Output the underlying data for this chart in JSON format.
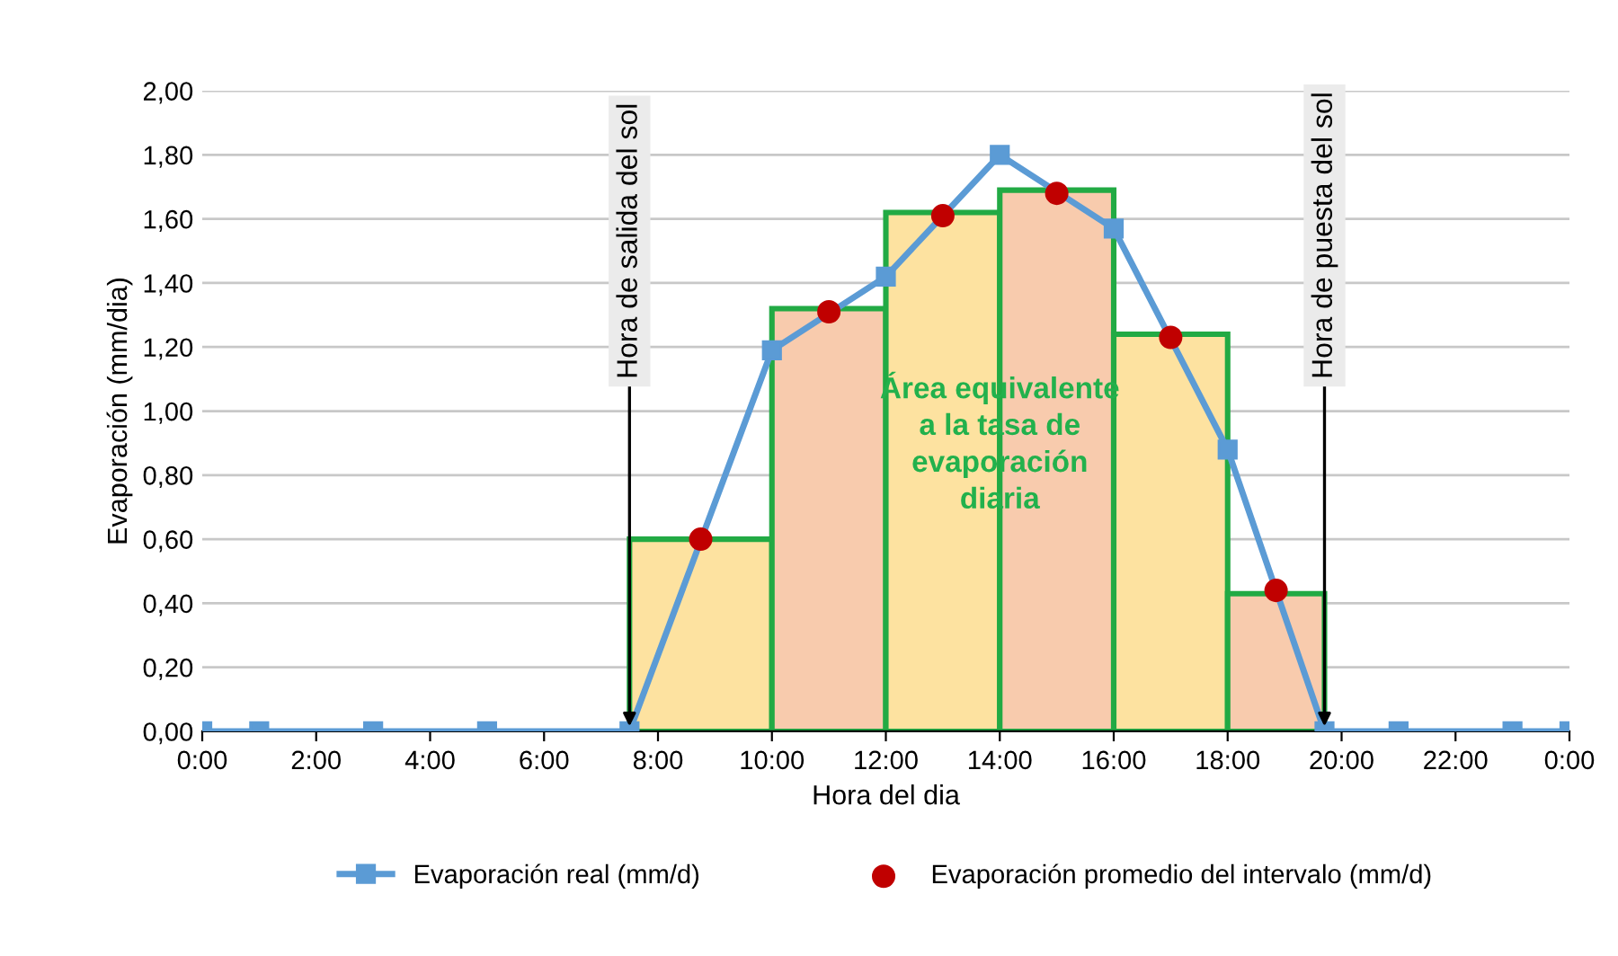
{
  "chart_data": {
    "type": "line",
    "xlabel": "Hora del dia",
    "ylabel": "Evaporación (mm/dia)",
    "xlim": [
      0,
      24
    ],
    "ylim": [
      0,
      2
    ],
    "xticks": [
      {
        "value": 0,
        "label": "0:00"
      },
      {
        "value": 2,
        "label": "2:00"
      },
      {
        "value": 4,
        "label": "4:00"
      },
      {
        "value": 6,
        "label": "6:00"
      },
      {
        "value": 8,
        "label": "8:00"
      },
      {
        "value": 10,
        "label": "10:00"
      },
      {
        "value": 12,
        "label": "12:00"
      },
      {
        "value": 14,
        "label": "14:00"
      },
      {
        "value": 16,
        "label": "16:00"
      },
      {
        "value": 18,
        "label": "18:00"
      },
      {
        "value": 20,
        "label": "20:00"
      },
      {
        "value": 22,
        "label": "22:00"
      },
      {
        "value": 24,
        "label": "0:00"
      }
    ],
    "yticks": [
      {
        "value": 0,
        "label": "0,00"
      },
      {
        "value": 0.2,
        "label": "0,20"
      },
      {
        "value": 0.4,
        "label": "0,40"
      },
      {
        "value": 0.6,
        "label": "0,60"
      },
      {
        "value": 0.8,
        "label": "0,80"
      },
      {
        "value": 1.0,
        "label": "1,00"
      },
      {
        "value": 1.2,
        "label": "1,20"
      },
      {
        "value": 1.4,
        "label": "1,40"
      },
      {
        "value": 1.6,
        "label": "1,60"
      },
      {
        "value": 1.8,
        "label": "1,80"
      },
      {
        "value": 2.0,
        "label": "2,00"
      }
    ],
    "grid": "y",
    "legend": "bottom",
    "series": [
      {
        "type": "histogram",
        "color": "#22aa44",
        "bins": [
          7.5,
          10,
          12,
          14,
          16,
          18,
          19.7
        ],
        "values": [
          0.6,
          1.32,
          1.62,
          1.69,
          1.24,
          0.43
        ],
        "colors": [
          "#fde2a0",
          "#f8cbad",
          "#fde2a0",
          "#f8cbad",
          "#fde2a0",
          "#f8cbad"
        ]
      },
      {
        "name": "Evaporación real (mm/d)",
        "color": "#5b9bd5",
        "marker": "square",
        "x": [
          0,
          1,
          3,
          5,
          7.5,
          10,
          12,
          14,
          16,
          18,
          19.7,
          21,
          23,
          24
        ],
        "values": [
          0,
          0,
          0,
          0,
          0,
          1.19,
          1.42,
          1.8,
          1.57,
          0.88,
          0,
          0,
          0,
          0
        ]
      },
      {
        "type": "scatter",
        "name": "Evaporación promedio del intervalo (mm/d)",
        "color": "#c00000",
        "marker": "circle",
        "x": [
          8.75,
          11,
          13,
          15,
          17,
          18.85
        ],
        "values": [
          0.6,
          1.31,
          1.61,
          1.68,
          1.23,
          0.44
        ]
      }
    ],
    "ref_lines": [
      {
        "axis": "x",
        "value": 7.5,
        "label": "Hora de salida del sol",
        "color": "#000000"
      },
      {
        "axis": "x",
        "value": 19.7,
        "label": "Hora de puesta del sol",
        "color": "#000000"
      }
    ],
    "annotations": [
      {
        "text": "Área equivalente\na la tasa de\nevaporación\ndiaria",
        "x": 14,
        "y": 0.9
      }
    ]
  }
}
